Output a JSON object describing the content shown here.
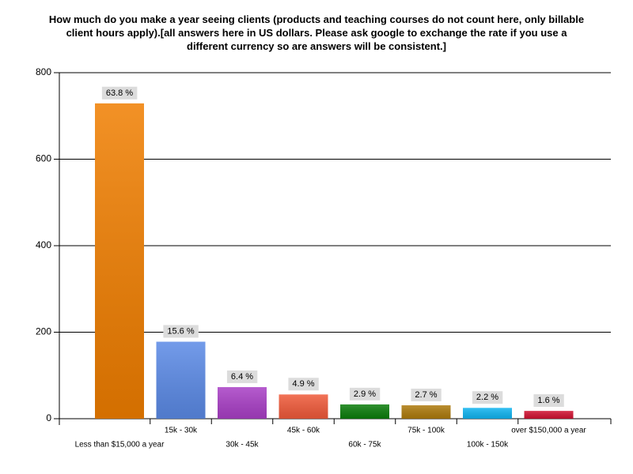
{
  "chart_data": {
    "type": "bar",
    "title": "How much do you make a year seeing clients (products and teaching courses do not count here, only billable client hours apply).[all answers here in US dollars.  Please ask google to exchange the rate if you use a different currency so are answers will be consistent.]",
    "categories": [
      "Less than $15,000 a year",
      "15k - 30k",
      "30k - 45k",
      "45k - 60k",
      "60k - 75k",
      "75k - 100k",
      "100k - 150k",
      "over $150,000 a year"
    ],
    "values": [
      729,
      178,
      73,
      56,
      33,
      31,
      25,
      18
    ],
    "bar_labels": [
      "63.8 %",
      "15.6 %",
      "6.4 %",
      "4.9 %",
      "2.9 %",
      "2.7 %",
      "2.2 %",
      "1.6 %"
    ],
    "colors": [
      "#f07e00",
      "#5b8ae6",
      "#a93fc6",
      "#f05a3a",
      "#0b7d0b",
      "#ad7a0c",
      "#10b4f0",
      "#d01030"
    ],
    "ylim": [
      0,
      800
    ],
    "yticks": [
      0,
      200,
      400,
      600,
      800
    ],
    "grid": true
  }
}
